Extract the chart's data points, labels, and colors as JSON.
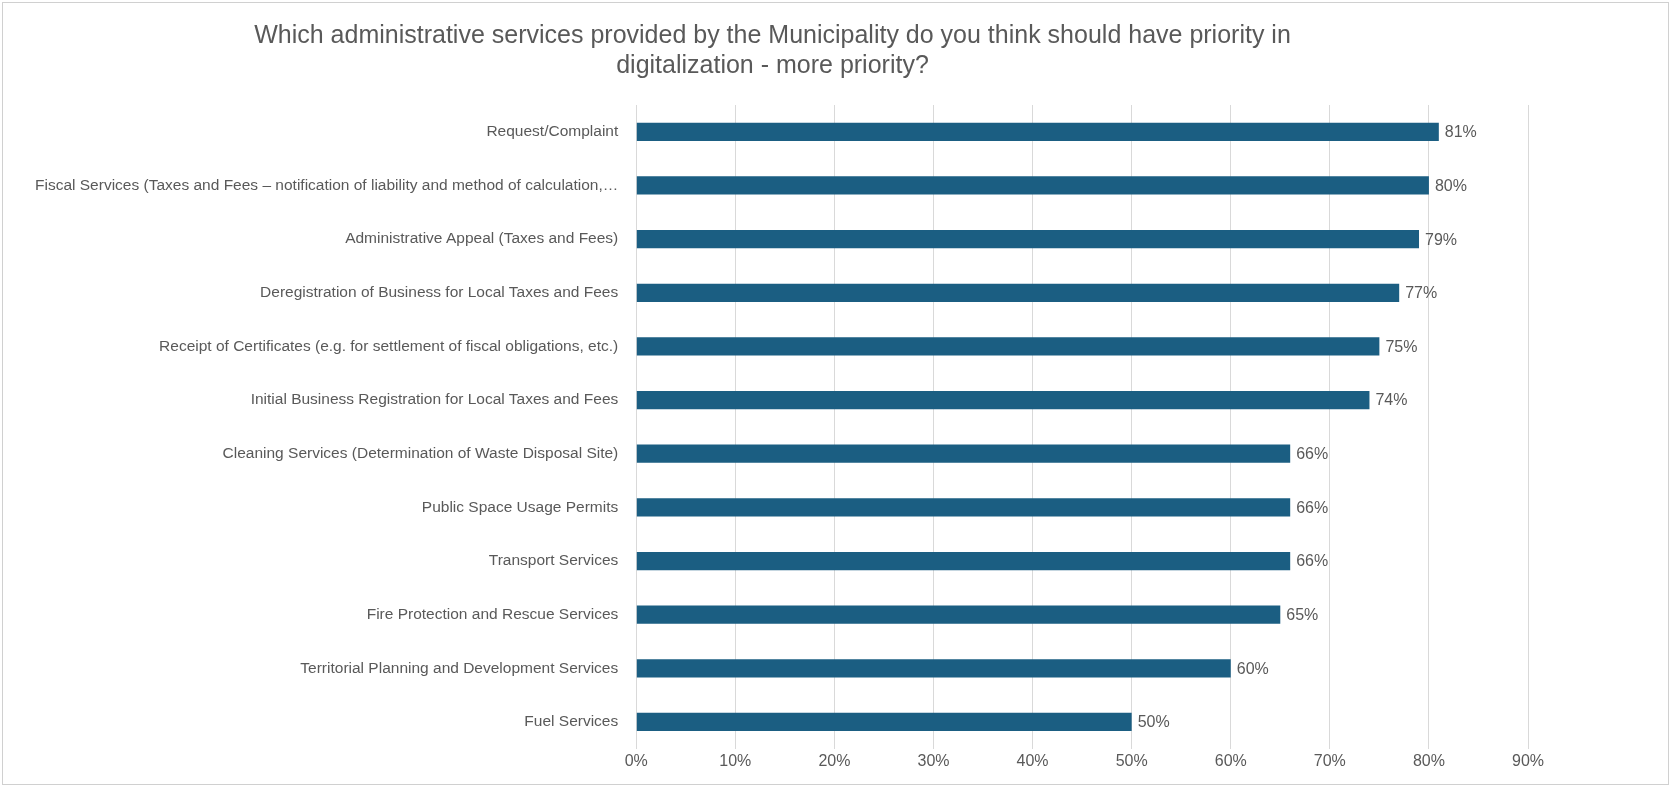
{
  "chart_data": {
    "type": "bar",
    "orientation": "horizontal",
    "title": "Which administrative services provided by the Municipality do you think should have priority in digitalization - more priority?",
    "categories": [
      "Request/Complaint",
      "Fiscal Services (Taxes and Fees – notification of liability and method of calculation,…",
      "Administrative Appeal (Taxes and Fees)",
      "Deregistration of Business for Local Taxes and Fees",
      "Receipt of Certificates (e.g. for settlement of fiscal obligations, etc.)",
      "Initial Business Registration for Local Taxes and Fees",
      "Cleaning Services (Determination of Waste Disposal Site)",
      "Public Space Usage Permits",
      "Transport Services",
      "Fire Protection and Rescue Services",
      "Territorial Planning and Development Services",
      "Fuel Services"
    ],
    "values": [
      81,
      80,
      79,
      77,
      75,
      74,
      66,
      66,
      66,
      65,
      60,
      50
    ],
    "value_labels": [
      "81%",
      "80%",
      "79%",
      "77%",
      "75%",
      "74%",
      "66%",
      "66%",
      "66%",
      "65%",
      "60%",
      "50%"
    ],
    "color": "#1b5e82",
    "xlim": [
      0,
      90
    ],
    "xticks": [
      {
        "value": 0,
        "label": "0%"
      },
      {
        "value": 10,
        "label": "10%"
      },
      {
        "value": 20,
        "label": "20%"
      },
      {
        "value": 30,
        "label": "30%"
      },
      {
        "value": 40,
        "label": "40%"
      },
      {
        "value": 50,
        "label": "50%"
      },
      {
        "value": 60,
        "label": "60%"
      },
      {
        "value": 70,
        "label": "70%"
      },
      {
        "value": 80,
        "label": "80%"
      },
      {
        "value": 90,
        "label": "90%"
      }
    ],
    "grid": "x",
    "legend": false
  }
}
